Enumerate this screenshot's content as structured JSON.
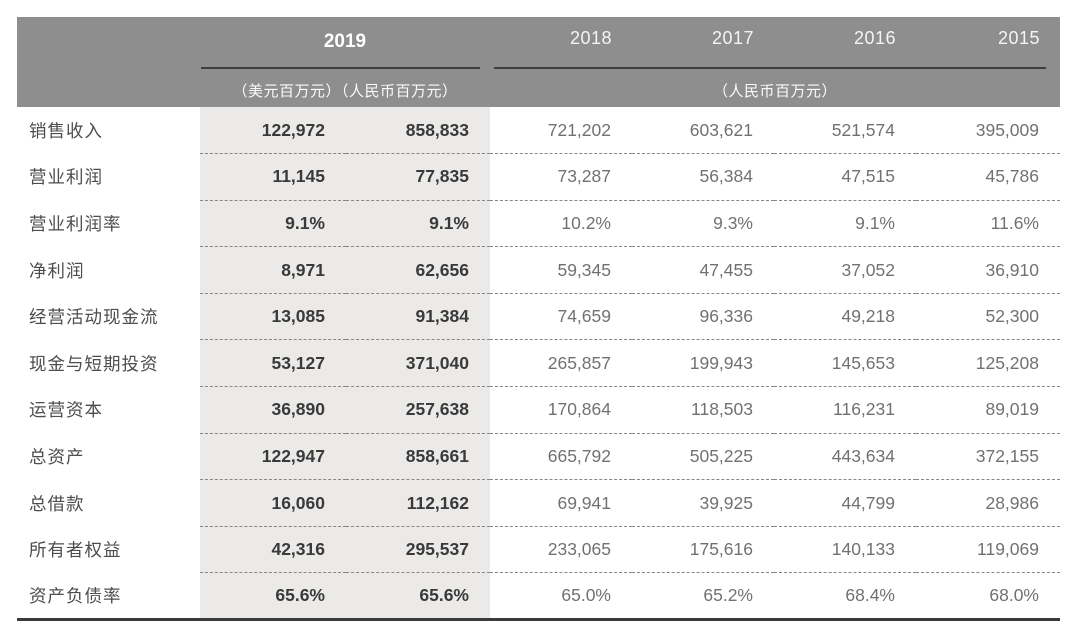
{
  "table": {
    "header": {
      "year_highlight": "2019",
      "years": [
        "2018",
        "2017",
        "2016",
        "2015"
      ],
      "unit_2019": "（美元百万元）（人民币百万元）",
      "unit_other": "（人民币百万元）"
    },
    "rows": [
      {
        "label": "销售收入",
        "values": [
          "122,972",
          "858,833",
          "721,202",
          "603,621",
          "521,574",
          "395,009"
        ]
      },
      {
        "label": "营业利润",
        "values": [
          "11,145",
          "77,835",
          "73,287",
          "56,384",
          "47,515",
          "45,786"
        ]
      },
      {
        "label": "营业利润率",
        "values": [
          "9.1%",
          "9.1%",
          "10.2%",
          "9.3%",
          "9.1%",
          "11.6%"
        ]
      },
      {
        "label": "净利润",
        "values": [
          "8,971",
          "62,656",
          "59,345",
          "47,455",
          "37,052",
          "36,910"
        ]
      },
      {
        "label": "经营活动现金流",
        "values": [
          "13,085",
          "91,384",
          "74,659",
          "96,336",
          "49,218",
          "52,300"
        ]
      },
      {
        "label": "现金与短期投资",
        "values": [
          "53,127",
          "371,040",
          "265,857",
          "199,943",
          "145,653",
          "125,208"
        ]
      },
      {
        "label": "运营资本",
        "values": [
          "36,890",
          "257,638",
          "170,864",
          "118,503",
          "116,231",
          "89,019"
        ]
      },
      {
        "label": "总资产",
        "values": [
          "122,947",
          "858,661",
          "665,792",
          "505,225",
          "443,634",
          "372,155"
        ]
      },
      {
        "label": "总借款",
        "values": [
          "16,060",
          "112,162",
          "69,941",
          "39,925",
          "44,799",
          "28,986"
        ]
      },
      {
        "label": "所有者权益",
        "values": [
          "42,316",
          "295,537",
          "233,065",
          "175,616",
          "140,133",
          "119,069"
        ]
      },
      {
        "label": "资产负债率",
        "values": [
          "65.6%",
          "65.6%",
          "65.0%",
          "65.2%",
          "68.4%",
          "68.0%"
        ]
      }
    ]
  },
  "colors": {
    "header_bg": "#8e8e8e",
    "header_text": "#ffffff",
    "highlight_column_bg": "#ebeae8",
    "highlight_value_text": "#3a3a3a",
    "history_value_text": "#717171",
    "row_label_text": "#4d4d4d",
    "header_rule": "#3f3f3f",
    "dashed_divider": "#878787",
    "bottom_border": "#3a3a3a"
  }
}
